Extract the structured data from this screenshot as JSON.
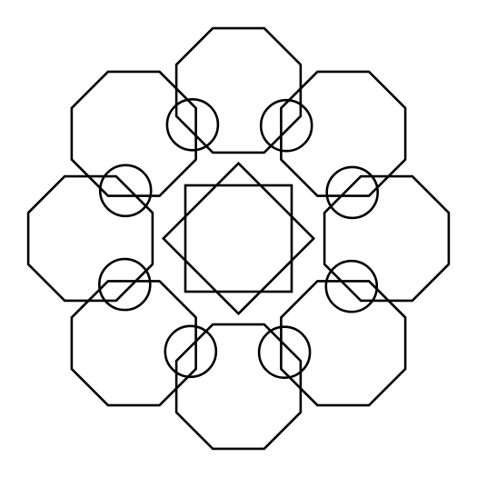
{
  "figure": {
    "stroke_color": "#000000",
    "background_color": "#ffffff",
    "shapes": {
      "octagons": 8,
      "circles": 8,
      "squares": 2
    }
  }
}
